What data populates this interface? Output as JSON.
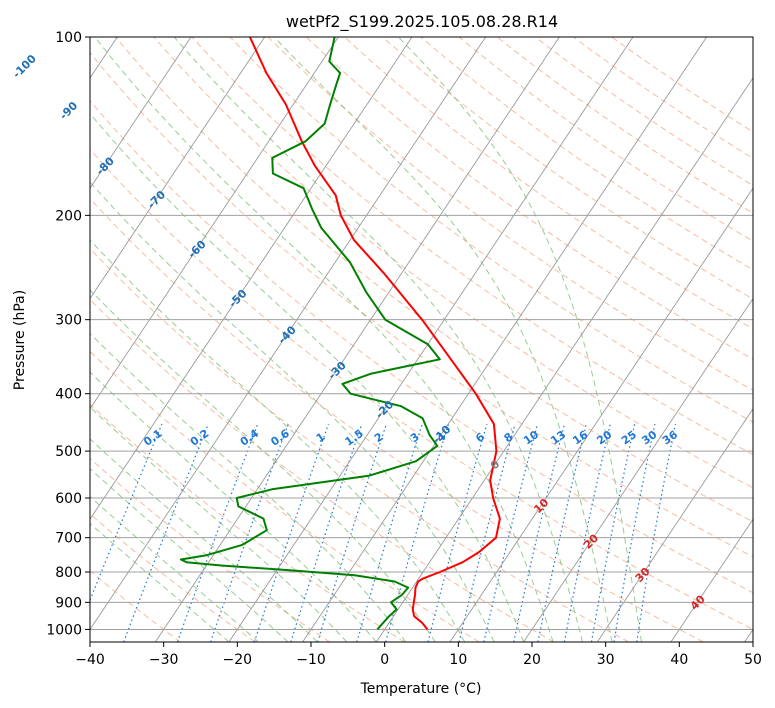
{
  "chart_data": {
    "type": "line",
    "title": "wetPf2_S199.2025.105.08.28.R14",
    "xlabel": "Temperature (°C)",
    "ylabel": "Pressure (hPa)",
    "xlim": [
      -40,
      50
    ],
    "ylim": [
      1050,
      100
    ],
    "y_scale": "log",
    "skew": "skew-T log-p",
    "grid": true,
    "x_ticks": [
      -40,
      -30,
      -20,
      -10,
      0,
      10,
      20,
      30,
      40,
      50
    ],
    "y_ticks": [
      100,
      200,
      300,
      400,
      500,
      600,
      700,
      800,
      900,
      1000
    ],
    "series": [
      {
        "color": "#ff0000",
        "points": [
          {
            "p": 1000,
            "t": 5.8
          },
          {
            "p": 975,
            "t": 4.5
          },
          {
            "p": 950,
            "t": 2.8
          },
          {
            "p": 925,
            "t": 2.0
          },
          {
            "p": 900,
            "t": 1.5
          },
          {
            "p": 875,
            "t": 1.0
          },
          {
            "p": 850,
            "t": 0.4
          },
          {
            "p": 830,
            "t": 0.2
          },
          {
            "p": 820,
            "t": 0.6
          },
          {
            "p": 800,
            "t": 2.3
          },
          {
            "p": 770,
            "t": 4.5
          },
          {
            "p": 740,
            "t": 5.8
          },
          {
            "p": 700,
            "t": 6.8
          },
          {
            "p": 650,
            "t": 5.6
          },
          {
            "p": 600,
            "t": 2.8
          },
          {
            "p": 560,
            "t": 0.8
          },
          {
            "p": 500,
            "t": -1.0
          },
          {
            "p": 450,
            "t": -3.8
          },
          {
            "p": 400,
            "t": -9.0
          },
          {
            "p": 350,
            "t": -15.5
          },
          {
            "p": 300,
            "t": -23.0
          },
          {
            "p": 250,
            "t": -32.5
          },
          {
            "p": 220,
            "t": -39.5
          },
          {
            "p": 200,
            "t": -43.5
          },
          {
            "p": 185,
            "t": -46.0
          },
          {
            "p": 165,
            "t": -51.5
          },
          {
            "p": 150,
            "t": -55.5
          },
          {
            "p": 130,
            "t": -61.0
          },
          {
            "p": 115,
            "t": -66.5
          },
          {
            "p": 100,
            "t": -72.0
          }
        ]
      },
      {
        "color": "#008000",
        "points": [
          {
            "p": 1000,
            "t": -1.0
          },
          {
            "p": 950,
            "t": -0.6
          },
          {
            "p": 925,
            "t": -0.2
          },
          {
            "p": 900,
            "t": -1.6
          },
          {
            "p": 875,
            "t": -0.8
          },
          {
            "p": 850,
            "t": -0.6
          },
          {
            "p": 830,
            "t": -3.0
          },
          {
            "p": 810,
            "t": -9.0
          },
          {
            "p": 795,
            "t": -18.0
          },
          {
            "p": 780,
            "t": -28.0
          },
          {
            "p": 770,
            "t": -33.0
          },
          {
            "p": 762,
            "t": -34.0
          },
          {
            "p": 750,
            "t": -31.0
          },
          {
            "p": 720,
            "t": -27.0
          },
          {
            "p": 680,
            "t": -25.0
          },
          {
            "p": 650,
            "t": -26.5
          },
          {
            "p": 620,
            "t": -31.0
          },
          {
            "p": 600,
            "t": -32.0
          },
          {
            "p": 580,
            "t": -28.0
          },
          {
            "p": 550,
            "t": -16.0
          },
          {
            "p": 520,
            "t": -11.0
          },
          {
            "p": 490,
            "t": -9.5
          },
          {
            "p": 470,
            "t": -11.5
          },
          {
            "p": 440,
            "t": -14.0
          },
          {
            "p": 420,
            "t": -18.0
          },
          {
            "p": 400,
            "t": -26.0
          },
          {
            "p": 385,
            "t": -28.0
          },
          {
            "p": 370,
            "t": -25.0
          },
          {
            "p": 350,
            "t": -17.0
          },
          {
            "p": 330,
            "t": -20.0
          },
          {
            "p": 300,
            "t": -28.0
          },
          {
            "p": 270,
            "t": -33.0
          },
          {
            "p": 240,
            "t": -38.0
          },
          {
            "p": 210,
            "t": -45.0
          },
          {
            "p": 195,
            "t": -48.0
          },
          {
            "p": 180,
            "t": -51.0
          },
          {
            "p": 170,
            "t": -56.5
          },
          {
            "p": 160,
            "t": -58.0
          },
          {
            "p": 150,
            "t": -55.0
          },
          {
            "p": 140,
            "t": -54.0
          },
          {
            "p": 130,
            "t": -55.0
          },
          {
            "p": 120,
            "t": -56.0
          },
          {
            "p": 115,
            "t": -56.5
          },
          {
            "p": 110,
            "t": -59.0
          },
          {
            "p": 100,
            "t": -60.5
          }
        ]
      }
    ],
    "isotherm_labels": [
      {
        "text": "-100",
        "t": -100,
        "p": 112
      },
      {
        "text": "-90",
        "t": -90,
        "p": 133
      },
      {
        "text": "-80",
        "t": -80,
        "p": 165
      },
      {
        "text": "-70",
        "t": -70,
        "p": 188
      },
      {
        "text": "-60",
        "t": -60,
        "p": 228
      },
      {
        "text": "-50",
        "t": -50,
        "p": 276
      },
      {
        "text": "-40",
        "t": -40,
        "p": 318
      },
      {
        "text": "-30",
        "t": -30,
        "p": 365
      },
      {
        "text": "-20",
        "t": -20,
        "p": 425
      },
      {
        "text": "-10",
        "t": -10,
        "p": 468
      },
      {
        "text": "0",
        "t": 0,
        "p": 527
      },
      {
        "text": "10",
        "t": 10,
        "p": 618
      },
      {
        "text": "20",
        "t": 20,
        "p": 710
      },
      {
        "text": "30",
        "t": 30,
        "p": 808
      },
      {
        "text": "40",
        "t": 40,
        "p": 900
      }
    ],
    "mixing_ratio_labels": [
      "0.1",
      "0.2",
      "0.4",
      "0.6",
      "1",
      "1.5",
      "2",
      "3",
      "4",
      "6",
      "8",
      "10",
      "13",
      "16",
      "20",
      "25",
      "30",
      "36"
    ],
    "mixing_ratio_label_p": 480,
    "colors": {
      "temperature": "#ff0000",
      "dewpoint": "#008000",
      "isobar": "#a0a0a0",
      "isotherm": "#9a9a9a",
      "dry_adiabat": "#f4a582",
      "moist_adiabat": "#7fbf7b",
      "mixing_ratio": "#1f78d4",
      "isotherm_label_cold": "#1f6fb4",
      "isotherm_label_zero": "#808080",
      "isotherm_label_warm": "#d62728"
    }
  }
}
